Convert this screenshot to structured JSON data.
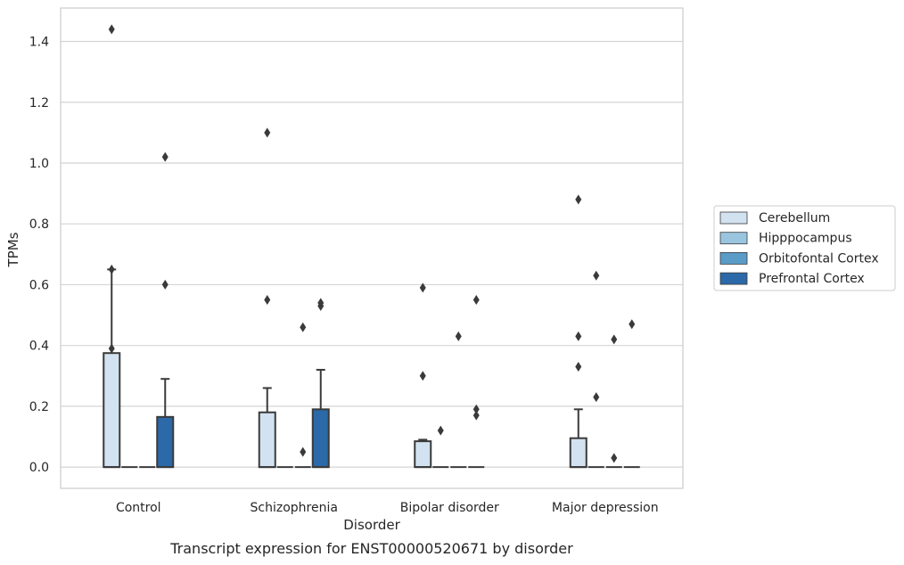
{
  "chart_data": {
    "type": "box",
    "caption": "Transcript expression for ENST00000520671 by disorder",
    "xlabel": "Disorder",
    "ylabel": "TPMs",
    "categories": [
      "Control",
      "Schizophrenia",
      "Bipolar disorder",
      "Major depression"
    ],
    "ylim": [
      -0.07,
      1.51
    ],
    "yticks": [
      0.0,
      0.2,
      0.4,
      0.6,
      0.8,
      1.0,
      1.2,
      1.4
    ],
    "ytick_labels": [
      "0.0",
      "0.2",
      "0.4",
      "0.6",
      "0.8",
      "1.0",
      "1.2",
      "1.4"
    ],
    "grid": "horizontal",
    "legend_position": "right",
    "series": [
      {
        "name": "Cerebellum",
        "color": "#d3e2f0",
        "boxes": [
          {
            "q1": 0.0,
            "median": 0.0,
            "q3": 0.375,
            "whisker_low": 0.0,
            "whisker_high": 0.65,
            "outliers": [
              1.44,
              0.65,
              0.39
            ]
          },
          {
            "q1": 0.0,
            "median": 0.0,
            "q3": 0.18,
            "whisker_low": 0.0,
            "whisker_high": 0.26,
            "outliers": [
              1.1,
              0.55
            ]
          },
          {
            "q1": 0.0,
            "median": 0.0,
            "q3": 0.085,
            "whisker_low": 0.0,
            "whisker_high": 0.09,
            "outliers": [
              0.59,
              0.3
            ]
          },
          {
            "q1": 0.0,
            "median": 0.0,
            "q3": 0.095,
            "whisker_low": 0.0,
            "whisker_high": 0.19,
            "outliers": [
              0.88,
              0.43,
              0.33
            ]
          }
        ]
      },
      {
        "name": "Hipppocampus",
        "color": "#9ac5df",
        "boxes": [
          {
            "q1": 0.0,
            "median": 0.0,
            "q3": 0.0,
            "whisker_low": 0.0,
            "whisker_high": 0.0,
            "outliers": []
          },
          {
            "q1": 0.0,
            "median": 0.0,
            "q3": 0.0,
            "whisker_low": 0.0,
            "whisker_high": 0.0,
            "outliers": []
          },
          {
            "q1": 0.0,
            "median": 0.0,
            "q3": 0.0,
            "whisker_low": 0.0,
            "whisker_high": 0.0,
            "outliers": [
              0.12
            ]
          },
          {
            "q1": 0.0,
            "median": 0.0,
            "q3": 0.0,
            "whisker_low": 0.0,
            "whisker_high": 0.0,
            "outliers": [
              0.63,
              0.23
            ]
          }
        ]
      },
      {
        "name": "Orbitofontal Cortex",
        "color": "#5a9bc8",
        "boxes": [
          {
            "q1": 0.0,
            "median": 0.0,
            "q3": 0.0,
            "whisker_low": 0.0,
            "whisker_high": 0.0,
            "outliers": []
          },
          {
            "q1": 0.0,
            "median": 0.0,
            "q3": 0.0,
            "whisker_low": 0.0,
            "whisker_high": 0.0,
            "outliers": [
              0.46,
              0.05
            ]
          },
          {
            "q1": 0.0,
            "median": 0.0,
            "q3": 0.0,
            "whisker_low": 0.0,
            "whisker_high": 0.0,
            "outliers": [
              0.43
            ]
          },
          {
            "q1": 0.0,
            "median": 0.0,
            "q3": 0.0,
            "whisker_low": 0.0,
            "whisker_high": 0.0,
            "outliers": [
              0.42,
              0.03
            ]
          }
        ]
      },
      {
        "name": "Prefrontal Cortex",
        "color": "#2b69a8",
        "boxes": [
          {
            "q1": 0.0,
            "median": 0.0,
            "q3": 0.165,
            "whisker_low": 0.0,
            "whisker_high": 0.29,
            "outliers": [
              1.02,
              0.6
            ]
          },
          {
            "q1": 0.0,
            "median": 0.0,
            "q3": 0.19,
            "whisker_low": 0.0,
            "whisker_high": 0.32,
            "outliers": [
              0.54,
              0.53
            ]
          },
          {
            "q1": 0.0,
            "median": 0.0,
            "q3": 0.0,
            "whisker_low": 0.0,
            "whisker_high": 0.0,
            "outliers": [
              0.55,
              0.19,
              0.17
            ]
          },
          {
            "q1": 0.0,
            "median": 0.0,
            "q3": 0.0,
            "whisker_low": 0.0,
            "whisker_high": 0.0,
            "outliers": [
              0.47
            ]
          }
        ]
      }
    ]
  }
}
